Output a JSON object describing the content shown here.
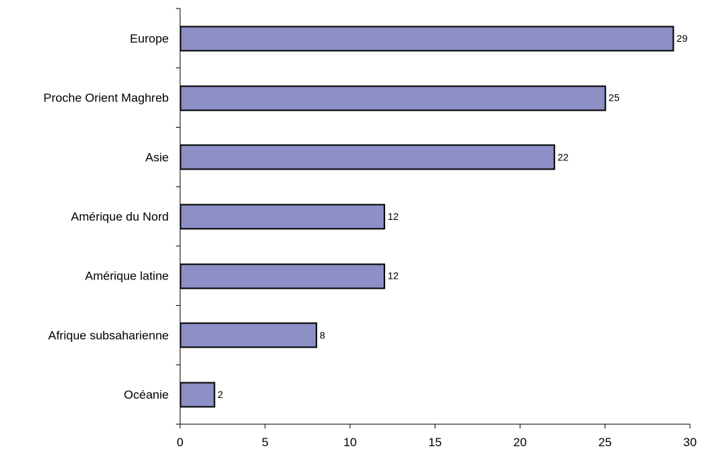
{
  "chart_data": {
    "type": "bar",
    "orientation": "horizontal",
    "categories": [
      "Europe",
      "Proche Orient Maghreb",
      "Asie",
      "Amérique du Nord",
      "Amérique latine",
      "Afrique subsaharienne",
      "Océanie"
    ],
    "values": [
      29,
      25,
      22,
      12,
      12,
      8,
      2
    ],
    "xlim": [
      0,
      30
    ],
    "xticks": [
      "0",
      "5",
      "10",
      "15",
      "20",
      "25",
      "30"
    ],
    "grid": false,
    "legend": "none",
    "data_labels": [
      "29",
      "25",
      "22",
      "12",
      "12",
      "8",
      "2"
    ],
    "colors": {
      "bar_fill": "#8d8fc6",
      "bar_stroke": "#000000",
      "axis": "#000000"
    }
  }
}
